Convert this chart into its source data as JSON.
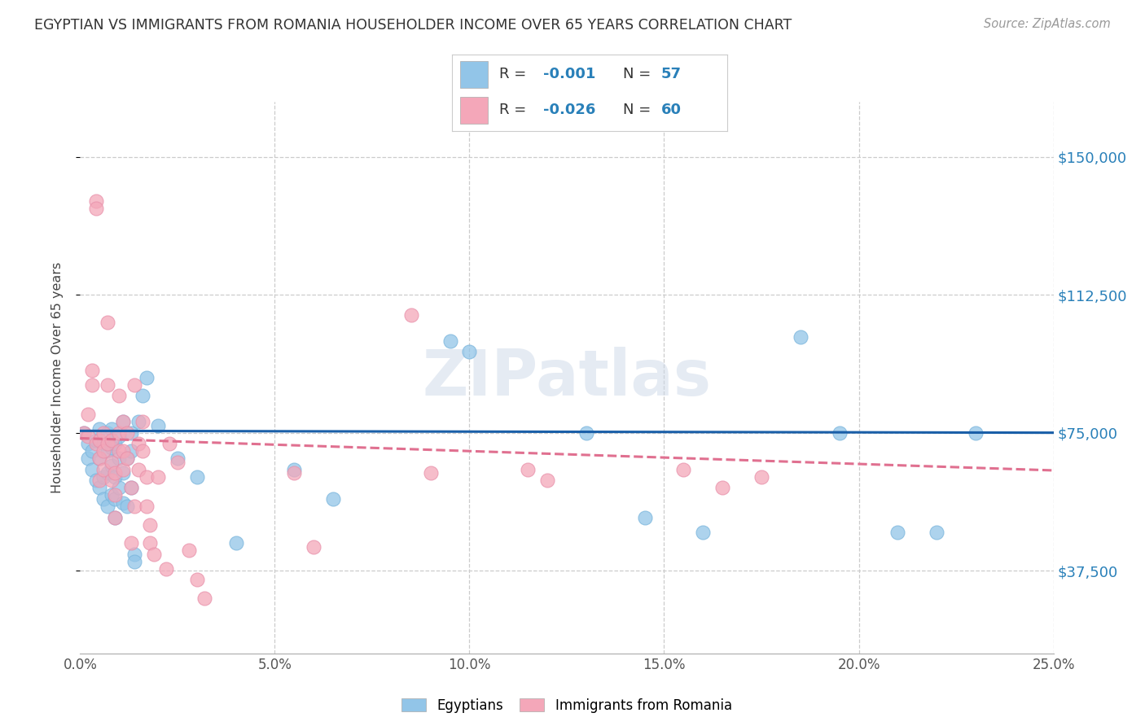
{
  "title": "EGYPTIAN VS IMMIGRANTS FROM ROMANIA HOUSEHOLDER INCOME OVER 65 YEARS CORRELATION CHART",
  "source": "Source: ZipAtlas.com",
  "ylabel": "Householder Income Over 65 years",
  "ytick_labels": [
    "$37,500",
    "$75,000",
    "$112,500",
    "$150,000"
  ],
  "ytick_values": [
    37500,
    75000,
    112500,
    150000
  ],
  "ylim": [
    15000,
    165000
  ],
  "xlim": [
    0.0,
    0.25
  ],
  "watermark": "ZIPatlas",
  "legend_r1": "-0.001",
  "legend_n1": "57",
  "legend_r2": "-0.026",
  "legend_n2": "60",
  "color_blue": "#92c5e8",
  "color_pink": "#f4a7b9",
  "trendline_blue_color": "#1a5fa8",
  "trendline_pink_color": "#e07090",
  "xtick_labels": [
    "0.0%",
    "5.0%",
    "10.0%",
    "15.0%",
    "20.0%",
    "25.0%"
  ],
  "xtick_positions": [
    0.0,
    0.05,
    0.1,
    0.15,
    0.2,
    0.25
  ],
  "egyptians_x": [
    0.001,
    0.002,
    0.002,
    0.003,
    0.003,
    0.004,
    0.004,
    0.005,
    0.005,
    0.005,
    0.006,
    0.006,
    0.006,
    0.007,
    0.007,
    0.007,
    0.007,
    0.008,
    0.008,
    0.008,
    0.008,
    0.009,
    0.009,
    0.009,
    0.009,
    0.01,
    0.01,
    0.01,
    0.011,
    0.011,
    0.011,
    0.012,
    0.012,
    0.013,
    0.013,
    0.013,
    0.014,
    0.014,
    0.015,
    0.016,
    0.017,
    0.02,
    0.025,
    0.03,
    0.04,
    0.055,
    0.065,
    0.095,
    0.1,
    0.13,
    0.145,
    0.16,
    0.185,
    0.195,
    0.21,
    0.22,
    0.23
  ],
  "egyptians_y": [
    75000,
    68000,
    72000,
    70000,
    65000,
    62000,
    73000,
    60000,
    68000,
    76000,
    57000,
    63000,
    72000,
    55000,
    64000,
    70000,
    75000,
    58000,
    66000,
    71000,
    76000,
    52000,
    57000,
    63000,
    72000,
    60000,
    68000,
    74000,
    56000,
    64000,
    78000,
    55000,
    68000,
    60000,
    70000,
    75000,
    42000,
    40000,
    78000,
    85000,
    90000,
    77000,
    68000,
    63000,
    45000,
    65000,
    57000,
    100000,
    97000,
    75000,
    52000,
    48000,
    101000,
    75000,
    48000,
    48000,
    75000
  ],
  "romania_x": [
    0.001,
    0.002,
    0.002,
    0.003,
    0.003,
    0.004,
    0.004,
    0.004,
    0.005,
    0.005,
    0.005,
    0.006,
    0.006,
    0.006,
    0.007,
    0.007,
    0.007,
    0.008,
    0.008,
    0.008,
    0.009,
    0.009,
    0.009,
    0.01,
    0.01,
    0.01,
    0.011,
    0.011,
    0.011,
    0.012,
    0.012,
    0.013,
    0.013,
    0.014,
    0.014,
    0.015,
    0.015,
    0.016,
    0.016,
    0.017,
    0.017,
    0.018,
    0.018,
    0.019,
    0.02,
    0.022,
    0.023,
    0.025,
    0.028,
    0.03,
    0.032,
    0.055,
    0.06,
    0.085,
    0.09,
    0.115,
    0.12,
    0.155,
    0.165,
    0.175
  ],
  "romania_y": [
    75000,
    80000,
    74000,
    92000,
    88000,
    138000,
    136000,
    72000,
    62000,
    68000,
    73000,
    70000,
    65000,
    75000,
    88000,
    105000,
    72000,
    67000,
    62000,
    73000,
    52000,
    58000,
    64000,
    70000,
    75000,
    85000,
    78000,
    70000,
    65000,
    75000,
    68000,
    60000,
    45000,
    55000,
    88000,
    72000,
    65000,
    78000,
    70000,
    63000,
    55000,
    45000,
    50000,
    42000,
    63000,
    38000,
    72000,
    67000,
    43000,
    35000,
    30000,
    64000,
    44000,
    107000,
    64000,
    65000,
    62000,
    65000,
    60000,
    63000
  ]
}
